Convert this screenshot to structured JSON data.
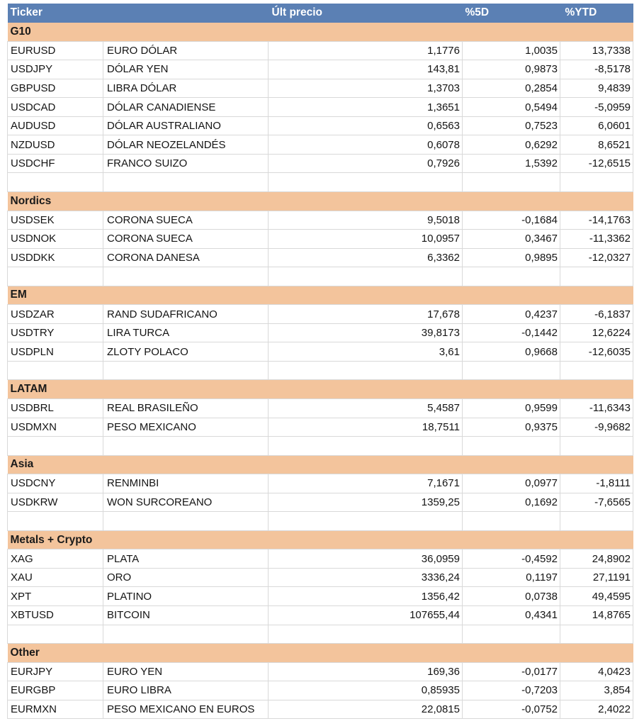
{
  "colors": {
    "header_bg": "#5B80B4",
    "header_text": "#FFFFFF",
    "section_bg": "#F3C49C",
    "grid_line": "#D9D9D9",
    "text": "#141414"
  },
  "columns": [
    {
      "label": "Ticker"
    },
    {
      "label": ""
    },
    {
      "label": "Últ precio"
    },
    {
      "label": "%5D"
    },
    {
      "label": "%YTD"
    }
  ],
  "sections": [
    {
      "label": "G10",
      "rows": [
        {
          "ticker": "EURUSD",
          "name": "EURO DÓLAR",
          "price": "1,1776",
          "pct_5d": "1,0035",
          "pct_ytd": "13,7338"
        },
        {
          "ticker": "USDJPY",
          "name": "DÓLAR YEN",
          "price": "143,81",
          "pct_5d": "0,9873",
          "pct_ytd": "-8,5178"
        },
        {
          "ticker": "GBPUSD",
          "name": "LIBRA DÓLAR",
          "price": "1,3703",
          "pct_5d": "0,2854",
          "pct_ytd": "9,4839"
        },
        {
          "ticker": "USDCAD",
          "name": "DÓLAR CANADIENSE",
          "price": "1,3651",
          "pct_5d": "0,5494",
          "pct_ytd": "-5,0959"
        },
        {
          "ticker": "AUDUSD",
          "name": "DÓLAR AUSTRALIANO",
          "price": "0,6563",
          "pct_5d": "0,7523",
          "pct_ytd": "6,0601"
        },
        {
          "ticker": "NZDUSD",
          "name": "DÓLAR NEOZELANDÉS",
          "price": "0,6078",
          "pct_5d": "0,6292",
          "pct_ytd": "8,6521"
        },
        {
          "ticker": "USDCHF",
          "name": "FRANCO SUIZO",
          "price": "0,7926",
          "pct_5d": "1,5392",
          "pct_ytd": "-12,6515"
        }
      ]
    },
    {
      "label": "Nordics",
      "rows": [
        {
          "ticker": "USDSEK",
          "name": "CORONA SUECA",
          "price": "9,5018",
          "pct_5d": "-0,1684",
          "pct_ytd": "-14,1763"
        },
        {
          "ticker": "USDNOK",
          "name": "CORONA SUECA",
          "price": "10,0957",
          "pct_5d": "0,3467",
          "pct_ytd": "-11,3362"
        },
        {
          "ticker": "USDDKK",
          "name": "CORONA DANESA",
          "price": "6,3362",
          "pct_5d": "0,9895",
          "pct_ytd": "-12,0327"
        }
      ]
    },
    {
      "label": "EM",
      "rows": [
        {
          "ticker": "USDZAR",
          "name": "RAND SUDAFRICANO",
          "price": "17,678",
          "pct_5d": "0,4237",
          "pct_ytd": "-6,1837"
        },
        {
          "ticker": "USDTRY",
          "name": "LIRA TURCA",
          "price": "39,8173",
          "pct_5d": "-0,1442",
          "pct_ytd": "12,6224"
        },
        {
          "ticker": "USDPLN",
          "name": "ZLOTY POLACO",
          "price": "3,61",
          "pct_5d": "0,9668",
          "pct_ytd": "-12,6035"
        }
      ]
    },
    {
      "label": "LATAM",
      "rows": [
        {
          "ticker": "USDBRL",
          "name": "REAL BRASILEÑO",
          "price": "5,4587",
          "pct_5d": "0,9599",
          "pct_ytd": "-11,6343"
        },
        {
          "ticker": "USDMXN",
          "name": "PESO MEXICANO",
          "price": "18,7511",
          "pct_5d": "0,9375",
          "pct_ytd": "-9,9682"
        }
      ]
    },
    {
      "label": "Asia",
      "rows": [
        {
          "ticker": "USDCNY",
          "name": "RENMINBI",
          "price": "7,1671",
          "pct_5d": "0,0977",
          "pct_ytd": "-1,8111"
        },
        {
          "ticker": "USDKRW",
          "name": "WON SURCOREANO",
          "price": "1359,25",
          "pct_5d": "0,1692",
          "pct_ytd": "-7,6565"
        }
      ]
    },
    {
      "label": "Metals + Crypto",
      "rows": [
        {
          "ticker": "XAG",
          "name": "PLATA",
          "price": "36,0959",
          "pct_5d": "-0,4592",
          "pct_ytd": "24,8902"
        },
        {
          "ticker": "XAU",
          "name": "ORO",
          "price": "3336,24",
          "pct_5d": "0,1197",
          "pct_ytd": "27,1191"
        },
        {
          "ticker": "XPT",
          "name": "PLATINO",
          "price": "1356,42",
          "pct_5d": "0,0738",
          "pct_ytd": "49,4595"
        },
        {
          "ticker": "XBTUSD",
          "name": "BITCOIN",
          "price": "107655,44",
          "pct_5d": "0,4341",
          "pct_ytd": "14,8765"
        }
      ]
    },
    {
      "label": "Other",
      "rows": [
        {
          "ticker": "EURJPY",
          "name": "EURO YEN",
          "price": "169,36",
          "pct_5d": "-0,0177",
          "pct_ytd": "4,0423"
        },
        {
          "ticker": "EURGBP",
          "name": "EURO LIBRA",
          "price": "0,85935",
          "pct_5d": "-0,7203",
          "pct_ytd": "3,854"
        },
        {
          "ticker": "EURMXN",
          "name": "PESO MEXICANO EN EUROS",
          "price": "22,0815",
          "pct_5d": "-0,0752",
          "pct_ytd": "2,4022"
        }
      ]
    }
  ]
}
